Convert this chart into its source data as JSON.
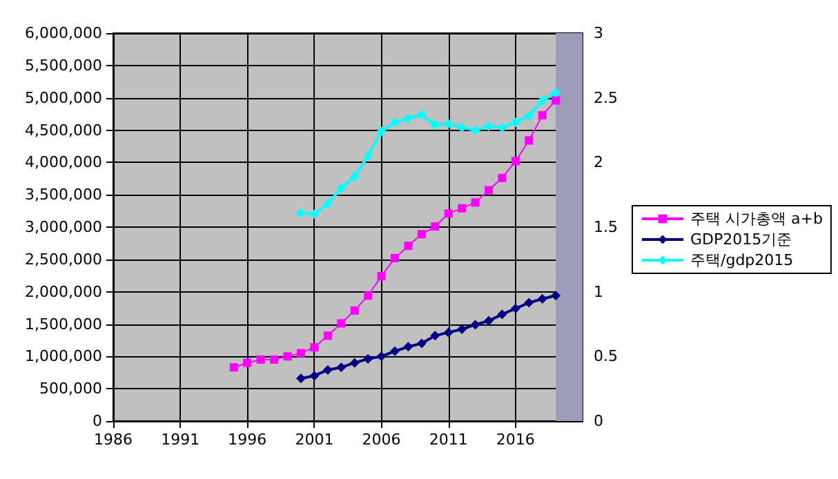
{
  "chart_data": {
    "type": "line",
    "x": [
      1995,
      1996,
      1997,
      1998,
      1999,
      2000,
      2001,
      2002,
      2003,
      2004,
      2005,
      2006,
      2007,
      2008,
      2009,
      2010,
      2011,
      2012,
      2013,
      2014,
      2015,
      2016,
      2017,
      2018,
      2019
    ],
    "series": [
      {
        "name": "주택 시가총액 a+b",
        "color": "#ff00ff",
        "marker": "square",
        "values": [
          830000,
          900000,
          950000,
          950000,
          1000000,
          1050000,
          1140000,
          1320000,
          1510000,
          1710000,
          1940000,
          2240000,
          2520000,
          2710000,
          2890000,
          3010000,
          3210000,
          3290000,
          3380000,
          3570000,
          3760000,
          4020000,
          4340000,
          4730000,
          4960000
        ]
      },
      {
        "name": "GDP2015기준",
        "color": "#000080",
        "marker": "diamond",
        "values": [
          null,
          null,
          null,
          null,
          null,
          660000,
          700000,
          790000,
          830000,
          900000,
          960000,
          1000000,
          1080000,
          1150000,
          1200000,
          1320000,
          1370000,
          1420000,
          1490000,
          1550000,
          1650000,
          1740000,
          1830000,
          1890000,
          1940000
        ]
      },
      {
        "name": "주택/gdp2015",
        "color": "#00ffff",
        "marker": "diamond",
        "axis": "y2",
        "values": [
          null,
          null,
          null,
          null,
          null,
          1.61,
          1.6,
          1.68,
          1.8,
          1.89,
          2.05,
          2.24,
          2.31,
          2.34,
          2.37,
          2.29,
          2.3,
          2.27,
          2.25,
          2.28,
          2.27,
          2.31,
          2.36,
          2.48,
          2.54
        ]
      }
    ],
    "xlim": [
      1986,
      2021
    ],
    "xticks": [
      1986,
      1991,
      1996,
      2001,
      2006,
      2011,
      2016
    ],
    "ylim": [
      0,
      6000000
    ],
    "yticks": [
      0,
      {
        "value": 500000,
        "label": "500,000"
      },
      {
        "value": 1000000,
        "label": "1,000,000"
      },
      {
        "value": 1500000,
        "label": "1,500,000"
      },
      {
        "value": 2000000,
        "label": "2,000,000"
      },
      {
        "value": 2500000,
        "label": "2,500,000"
      },
      {
        "value": 3000000,
        "label": "3,000,000"
      },
      {
        "value": 3500000,
        "label": "3,500,000"
      },
      {
        "value": 4000000,
        "label": "4,000,000"
      },
      {
        "value": 4500000,
        "label": "4,500,000"
      },
      {
        "value": 5000000,
        "label": "5,000,000"
      },
      {
        "value": 5500000,
        "label": "5,500,000"
      },
      {
        "value": 6000000,
        "label": "6,000,000"
      }
    ],
    "y2lim": [
      0,
      3
    ],
    "y2ticks": [
      0,
      0.5,
      1,
      1.5,
      2,
      2.5,
      3
    ],
    "bands": [
      {
        "axis": "x",
        "from": 2019,
        "to": 2021,
        "color": "#9c9cb8"
      }
    ],
    "grid": true,
    "legend": "right",
    "line_style": "solid"
  }
}
